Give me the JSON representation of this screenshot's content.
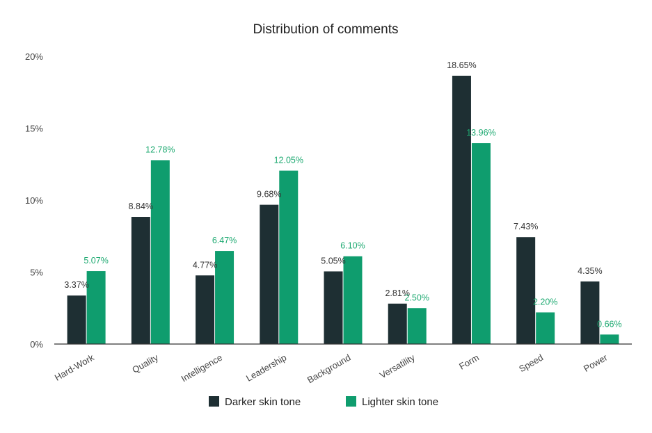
{
  "chart_data": {
    "type": "bar",
    "title": "Distribution of comments",
    "xlabel": "",
    "ylabel": "",
    "ylim": [
      0,
      20
    ],
    "y_ticks": [
      0,
      5,
      10,
      15,
      20
    ],
    "y_tick_labels": [
      "0%",
      "5%",
      "10%",
      "15%",
      "20%"
    ],
    "grid": false,
    "legend_position": "bottom",
    "categories": [
      "Hard-Work",
      "Quality",
      "Intelligence",
      "Leadership",
      "Background",
      "Versatility",
      "Form",
      "Speed",
      "Power"
    ],
    "series": [
      {
        "name": "Darker skin tone",
        "color": "#1e2f33",
        "label_color": "#333333",
        "values": [
          3.37,
          8.84,
          4.77,
          9.68,
          5.05,
          2.81,
          18.65,
          7.43,
          4.35
        ],
        "labels": [
          "3.37%",
          "8.84%",
          "4.77%",
          "9.68%",
          "5.05%",
          "2.81%",
          "18.65%",
          "7.43%",
          "4.35%"
        ]
      },
      {
        "name": "Lighter skin tone",
        "color": "#0f9d6e",
        "label_color": "#1faa72",
        "values": [
          5.07,
          12.78,
          6.47,
          12.05,
          6.1,
          2.5,
          13.96,
          2.2,
          0.66
        ],
        "labels": [
          "5.07%",
          "12.78%",
          "6.47%",
          "12.05%",
          "6.10%",
          "2.50%",
          "13.96%",
          "2.20%",
          "0.66%"
        ]
      }
    ]
  }
}
